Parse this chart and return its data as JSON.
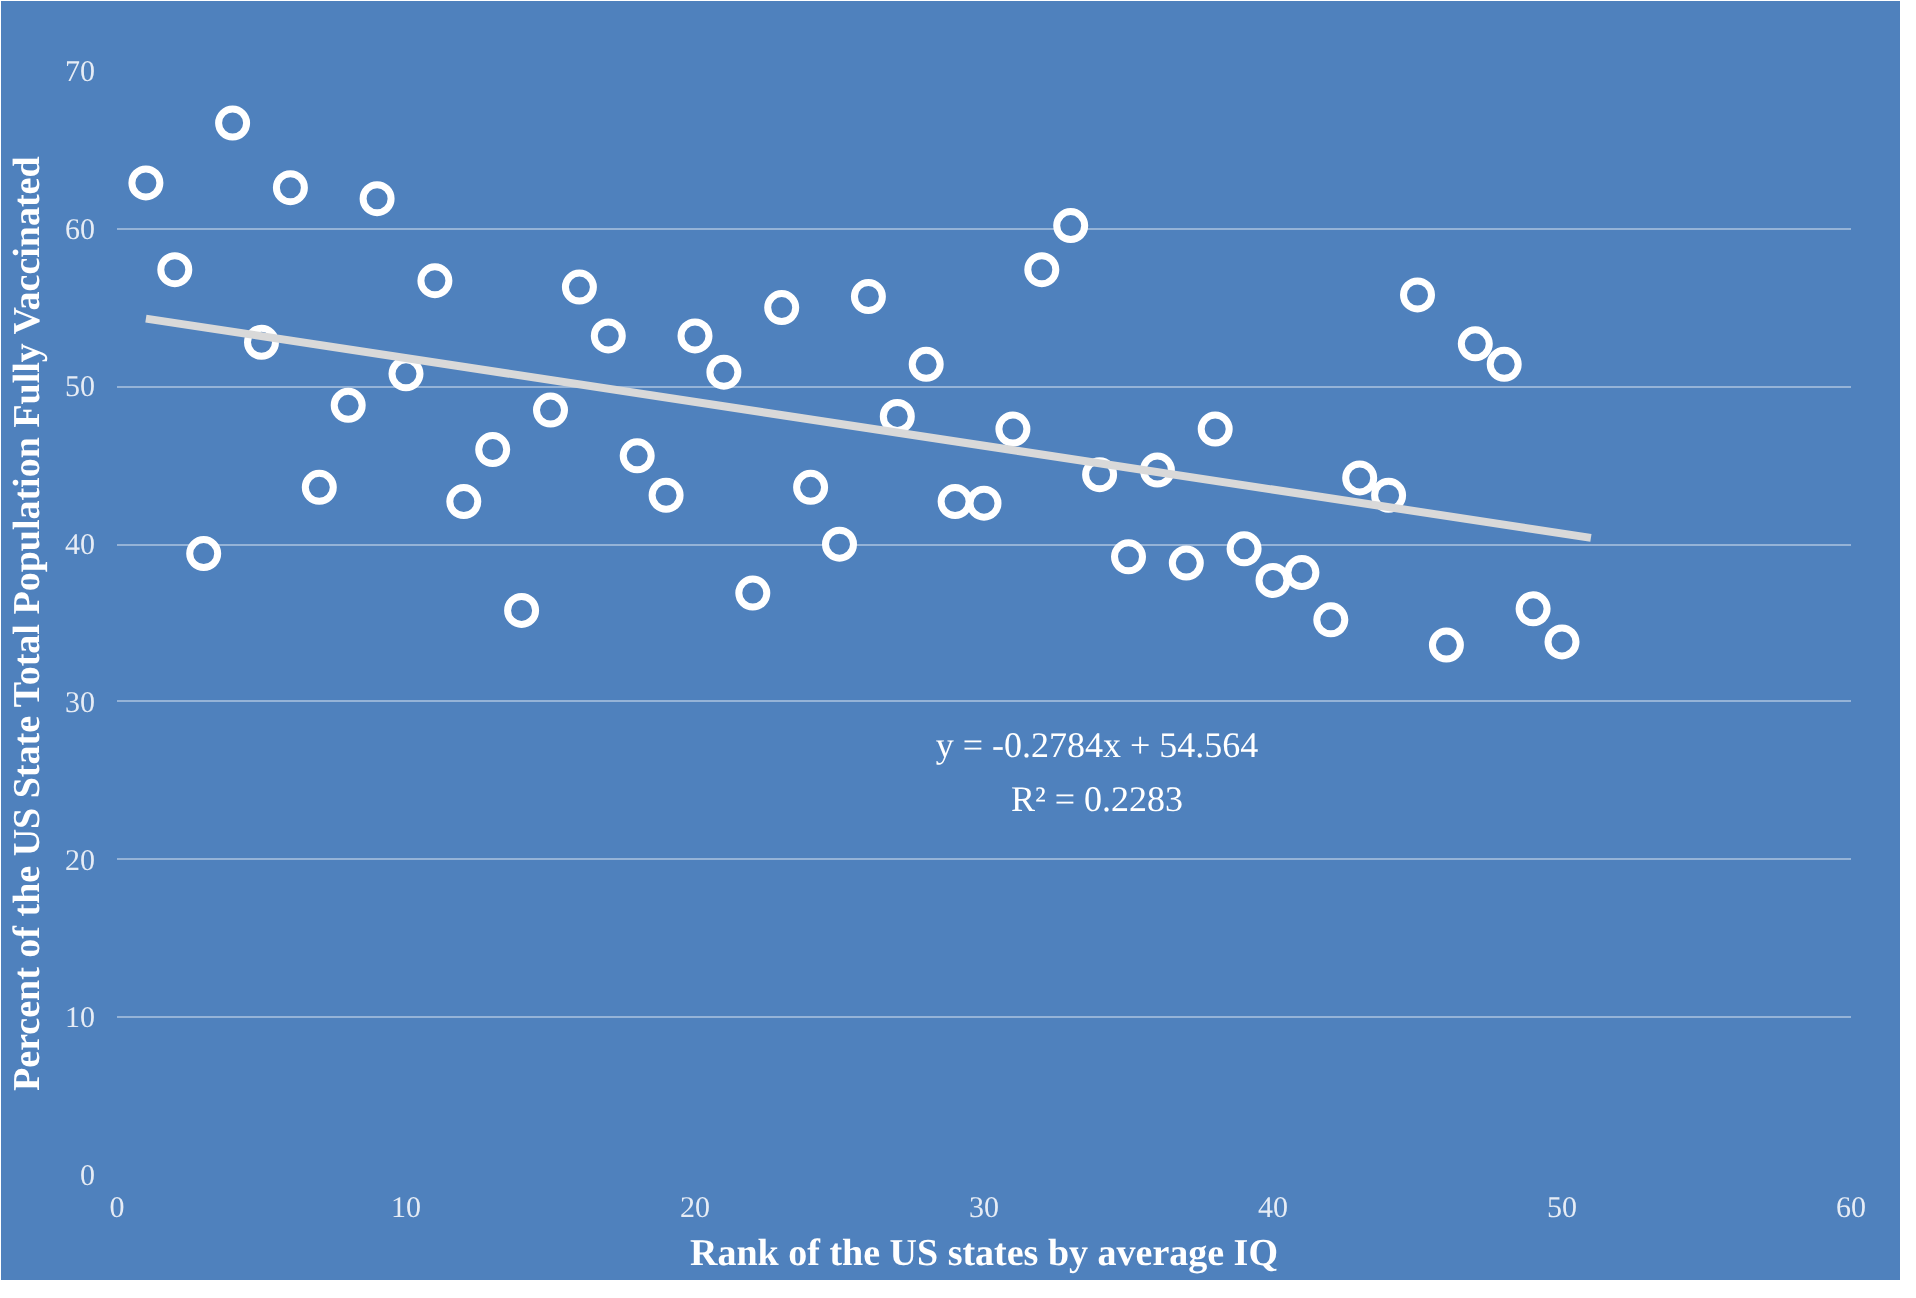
{
  "chart_data": {
    "type": "scatter",
    "xlabel": "Rank of the US states by average IQ",
    "ylabel": "Percent of the US State Total Population Fully Vaccinated",
    "xlim": [
      0,
      60
    ],
    "ylim": [
      0,
      70
    ],
    "xticks": [
      0,
      10,
      20,
      30,
      40,
      50,
      60
    ],
    "yticks": [
      0,
      10,
      20,
      30,
      40,
      50,
      60,
      70
    ],
    "grid": "y",
    "marker": "circle",
    "annotations": [
      "y = -0.2784x + 54.564",
      "R² = 0.2283"
    ],
    "series": [
      {
        "color": "#ffffff",
        "x": [
          1,
          2,
          3,
          4,
          5,
          6,
          7,
          8,
          9,
          10,
          11,
          12,
          13,
          14,
          15,
          16,
          17,
          18,
          19,
          20,
          21,
          22,
          23,
          24,
          25,
          26,
          27,
          28,
          29,
          30,
          31,
          32,
          33,
          34,
          35,
          36,
          37,
          38,
          39,
          40,
          41,
          42,
          43,
          44,
          45,
          46,
          47,
          48,
          49,
          50
        ],
        "values": [
          62.9,
          57.4,
          39.4,
          66.7,
          52.8,
          62.6,
          43.6,
          48.8,
          61.9,
          50.8,
          56.7,
          42.7,
          46.0,
          35.8,
          48.5,
          56.3,
          53.2,
          45.6,
          43.1,
          53.2,
          50.9,
          36.9,
          55.0,
          43.6,
          40.0,
          55.7,
          48.1,
          51.4,
          42.7,
          42.6,
          47.3,
          57.4,
          60.2,
          44.4,
          39.2,
          44.7,
          38.8,
          47.3,
          39.7,
          37.7,
          38.2,
          35.2,
          44.2,
          43.1,
          55.8,
          33.6,
          52.7,
          51.4,
          35.9,
          33.8
        ]
      },
      {
        "type": "line",
        "marker": "none",
        "color": "#d9d9d9",
        "x": [
          1,
          51
        ],
        "values": [
          54.3,
          40.4
        ]
      }
    ]
  }
}
